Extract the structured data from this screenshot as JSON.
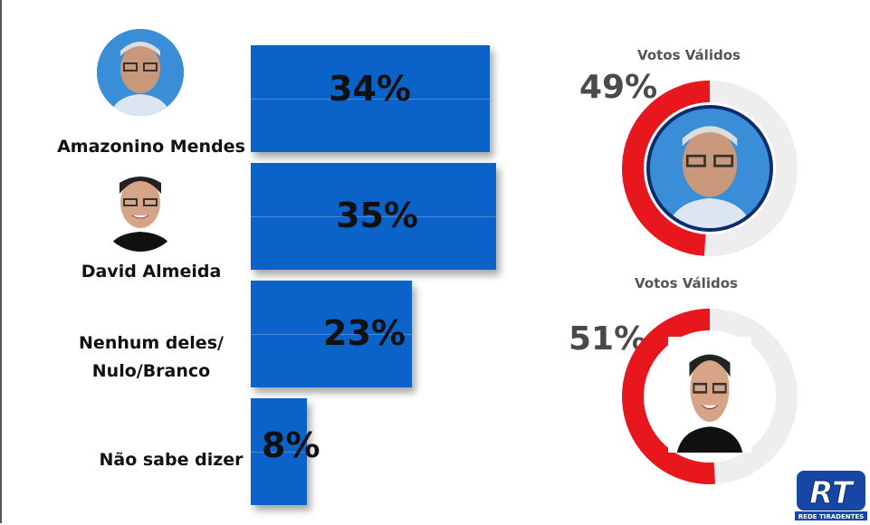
{
  "chart_data": [
    {
      "type": "bar",
      "orientation": "horizontal",
      "categories": [
        "Amazonino Mendes",
        "David Almeida",
        "Nenhum deles/\nNulo/Branco",
        "Não sabe dizer"
      ],
      "values": [
        34,
        35,
        23,
        8
      ],
      "value_labels": [
        "34%",
        "35%",
        "23%",
        "8%"
      ],
      "bar_color": "#0b63c9"
    },
    {
      "type": "pie",
      "title": "Votos Válidos",
      "value": 49,
      "label": "49%",
      "candidate": "Amazonino Mendes",
      "colors": [
        "#e8161d",
        "#eeeeee"
      ]
    },
    {
      "type": "pie",
      "title": "Votos Válidos",
      "value": 51,
      "label": "51%",
      "candidate": "David Almeida",
      "colors": [
        "#e8161d",
        "#eeeeee"
      ]
    }
  ],
  "logo": {
    "text": "RT",
    "subtitle": "REDE TIRADENTES",
    "color": "#1747a6"
  }
}
